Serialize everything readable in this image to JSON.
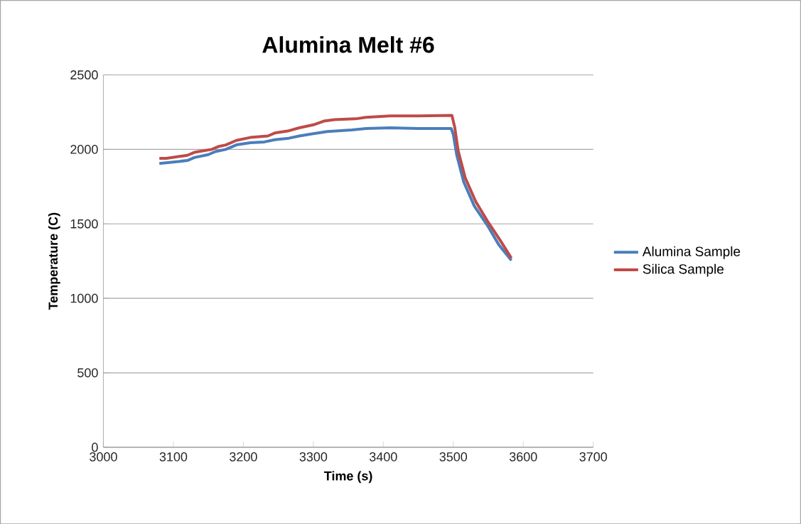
{
  "chart_data": {
    "type": "line",
    "title": "Alumina Melt #6",
    "xlabel": "Time (s)",
    "ylabel": "Temperature (C)",
    "xlim": [
      3000,
      3700
    ],
    "xticks": [
      3000,
      3100,
      3200,
      3300,
      3400,
      3500,
      3600,
      3700
    ],
    "ylim": [
      0,
      2500
    ],
    "yticks": [
      0,
      500,
      1000,
      1500,
      2000,
      2500
    ],
    "grid": "y",
    "legend": "right",
    "marker": "none",
    "line_style": "solid",
    "series": [
      {
        "name": "Alumina Sample",
        "color": "#4a7ebb",
        "x": [
          3080,
          3120,
          3130,
          3150,
          3160,
          3175,
          3190,
          3210,
          3230,
          3245,
          3265,
          3280,
          3300,
          3320,
          3355,
          3375,
          3410,
          3450,
          3497,
          3500,
          3505,
          3515,
          3530,
          3550,
          3565,
          3583
        ],
        "values": [
          1905,
          1925,
          1945,
          1965,
          1985,
          2000,
          2030,
          2045,
          2050,
          2065,
          2075,
          2090,
          2105,
          2120,
          2130,
          2140,
          2145,
          2140,
          2140,
          2100,
          1960,
          1780,
          1620,
          1480,
          1360,
          1255
        ]
      },
      {
        "name": "Silica Sample",
        "color": "#be4b48",
        "x": [
          3080,
          3090,
          3120,
          3130,
          3155,
          3165,
          3175,
          3190,
          3210,
          3235,
          3245,
          3265,
          3280,
          3300,
          3315,
          3330,
          3360,
          3375,
          3410,
          3450,
          3498,
          3502,
          3507,
          3517,
          3532,
          3550,
          3567,
          3583
        ],
        "values": [
          1940,
          1940,
          1960,
          1980,
          2000,
          2020,
          2030,
          2060,
          2080,
          2090,
          2110,
          2125,
          2145,
          2165,
          2190,
          2200,
          2205,
          2215,
          2225,
          2225,
          2228,
          2150,
          1990,
          1810,
          1650,
          1510,
          1390,
          1270
        ]
      }
    ]
  }
}
